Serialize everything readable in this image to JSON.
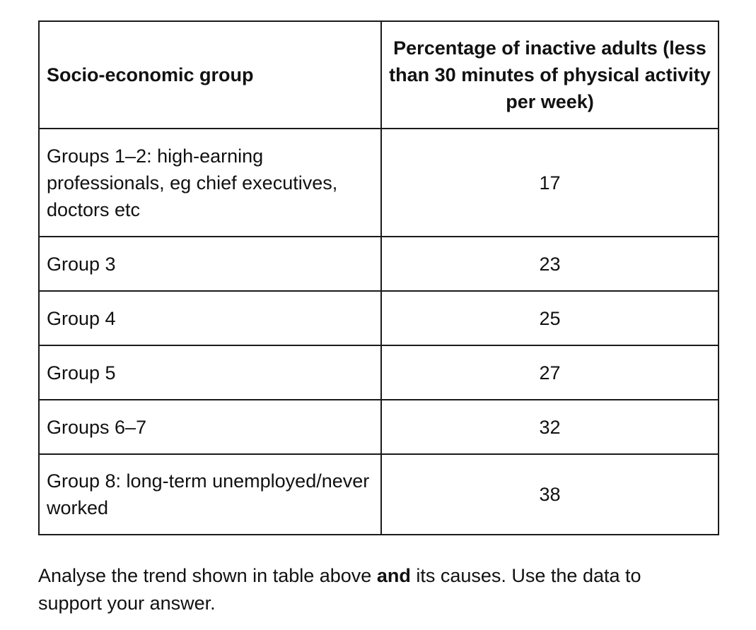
{
  "table": {
    "headers": {
      "group": "Socio-economic group",
      "percentage": "Percentage of inactive adults (less than 30 minutes of physical activity per week)"
    },
    "rows": [
      {
        "group": "Groups 1–2: high-earning professionals, eg chief executives, doctors etc",
        "value": "17"
      },
      {
        "group": "Group 3",
        "value": "23"
      },
      {
        "group": "Group 4",
        "value": "25"
      },
      {
        "group": "Group 5",
        "value": "27"
      },
      {
        "group": "Groups 6–7",
        "value": "32"
      },
      {
        "group": "Group 8: long-term unemployed/never worked",
        "value": "38"
      }
    ]
  },
  "question": {
    "part1": "Analyse the trend shown in table above ",
    "emphasis": "and",
    "part2": " its causes. Use the data to support your answer."
  }
}
